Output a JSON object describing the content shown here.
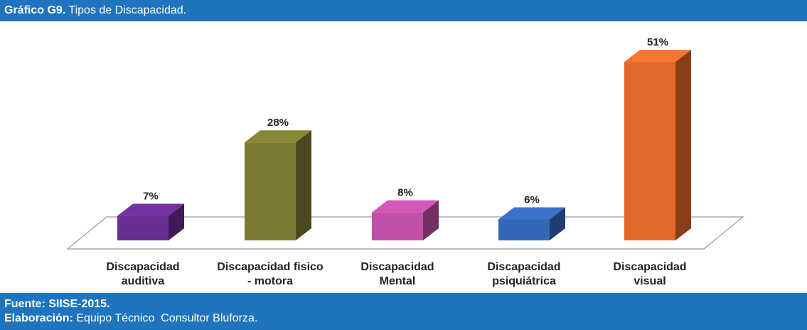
{
  "header": {
    "label": "Gráfico G9.",
    "title": "Tipos de Discapacidad."
  },
  "chart_data": {
    "type": "bar3d",
    "categories": [
      "Discapacidad auditiva",
      "Discapacidad fisico - motora",
      "Discapacidad Mental",
      "Discapacidad psiquiátrica",
      "Discapacidad visual"
    ],
    "values": [
      7,
      28,
      8,
      6,
      51
    ],
    "value_labels": [
      "7%",
      "28%",
      "8%",
      "6%",
      "51%"
    ],
    "colors": [
      "#6a2d92",
      "#7b7b32",
      "#c050a8",
      "#3567b9",
      "#e2692a"
    ]
  },
  "footer": {
    "source": "Fuente: SIISE-2015.",
    "credit_label": "Elaboración:",
    "credit": "Equipo Técnico  Consultor Bluforza."
  }
}
